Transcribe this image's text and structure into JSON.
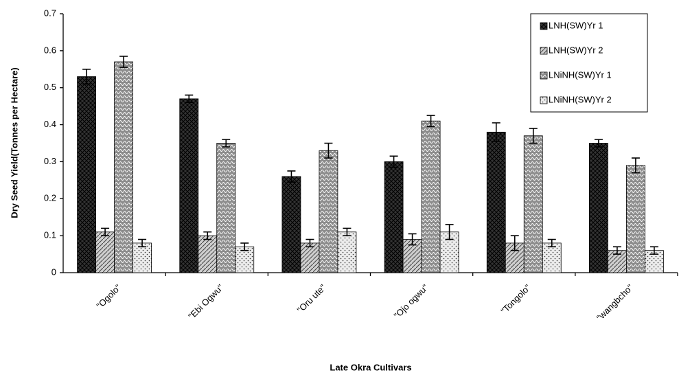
{
  "chart_data": {
    "type": "bar",
    "y_label": "Dry Seed Yield(Tonnes per Hectare)",
    "x_label": "Late Okra Cultivars",
    "categories": [
      "\"Ogolo\"",
      "\"Ebi Ogwu\"",
      "\"Oru ute\"",
      "\"Ojo ogwu\"",
      "\"Tongolo\"",
      "\"wangbcho\""
    ],
    "series": [
      {
        "name": "LNH(SW)Yr 1",
        "color": "#333333",
        "values": [
          0.53,
          0.47,
          0.26,
          0.3,
          0.38,
          0.35
        ],
        "errors": [
          0.02,
          0.01,
          0.015,
          0.015,
          0.025,
          0.01
        ]
      },
      {
        "name": "LNH(SW)Yr 2",
        "color": "#cfcfcf",
        "values": [
          0.11,
          0.1,
          0.08,
          0.09,
          0.08,
          0.06
        ],
        "errors": [
          0.01,
          0.01,
          0.01,
          0.015,
          0.02,
          0.01
        ]
      },
      {
        "name": "LNiNH(SW)Yr 1",
        "color": "#8c8c8c",
        "values": [
          0.57,
          0.35,
          0.33,
          0.41,
          0.37,
          0.29
        ],
        "errors": [
          0.015,
          0.01,
          0.02,
          0.015,
          0.02,
          0.02
        ]
      },
      {
        "name": "LNiNH(SW)Yr 2",
        "color": "#ececec",
        "values": [
          0.08,
          0.07,
          0.11,
          0.11,
          0.08,
          0.06
        ],
        "errors": [
          0.01,
          0.01,
          0.01,
          0.02,
          0.01,
          0.01
        ]
      }
    ],
    "ylim": [
      0,
      0.7
    ],
    "yticks": [
      0,
      0.1,
      0.2,
      0.3,
      0.4,
      0.5,
      0.6,
      0.7
    ],
    "grid": false,
    "legend": "top-right"
  }
}
